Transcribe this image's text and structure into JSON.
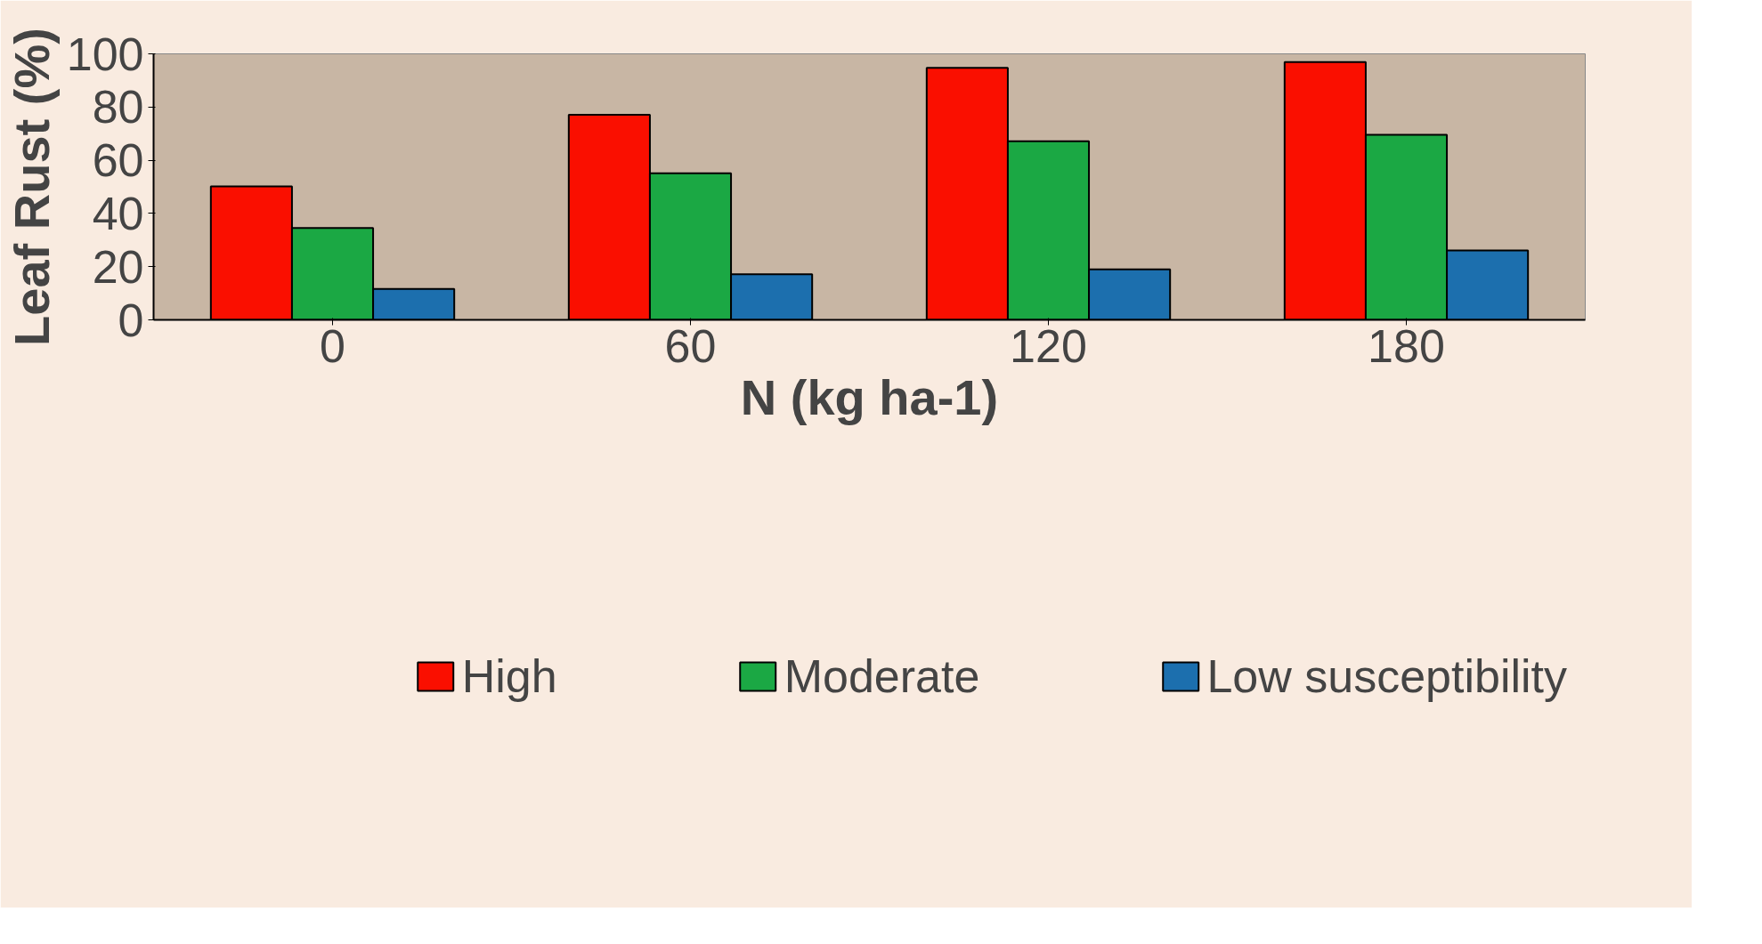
{
  "chart_data": {
    "type": "bar",
    "xlabel": "N (kg ha-1)",
    "ylabel": "Leaf Rust (%)",
    "categories": [
      "0",
      "60",
      "120",
      "180"
    ],
    "series": [
      {
        "name": "High",
        "color": "#fa0f00",
        "values": [
          50.2,
          77.1,
          94.7,
          96.9
        ]
      },
      {
        "name": "Moderate",
        "color": "#1ba844",
        "values": [
          34.5,
          55.1,
          67.1,
          69.6
        ]
      },
      {
        "name": "Low susceptibility",
        "color": "#1c6fae",
        "values": [
          11.6,
          17.1,
          19.0,
          26.1
        ]
      }
    ],
    "ylim": [
      0,
      100
    ],
    "yticks": [
      0,
      20,
      40,
      60,
      80,
      100
    ],
    "grid": false,
    "legend": "bottom"
  }
}
